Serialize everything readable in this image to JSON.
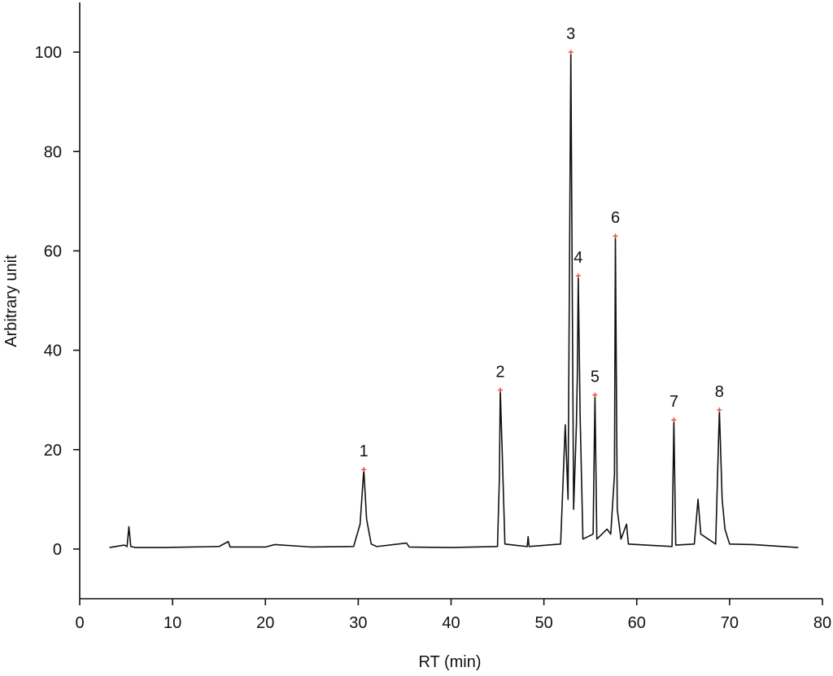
{
  "chart_data": {
    "type": "line",
    "x_label": "RT (min)",
    "y_label": "Arbitrary unit",
    "x": [
      3.2,
      4.8,
      5.1,
      5.3,
      5.5,
      6,
      9,
      12,
      15,
      16,
      16.2,
      20,
      21,
      25,
      29.5,
      30.2,
      30.6,
      30.9,
      31.1,
      31.4,
      32,
      35.2,
      35.5,
      40,
      45,
      45.2,
      45.3,
      45.5,
      45.8,
      48.2,
      48.3,
      48.4,
      51.8,
      52.3,
      52.6,
      52.9,
      53.2,
      53.5,
      53.6,
      53.7,
      53.9,
      54.2,
      55.3,
      55.5,
      55.7,
      56.8,
      57.2,
      57.6,
      57.7,
      57.9,
      58.3,
      58.9,
      59.1,
      61,
      63.8,
      64.0,
      64.2,
      66.2,
      66.6,
      66.9,
      68.5,
      68.9,
      69.2,
      69.5,
      70,
      72.5,
      77.4
    ],
    "values": [
      0.3,
      0.8,
      0.5,
      4.5,
      0.5,
      0.3,
      0.3,
      0.4,
      0.5,
      1.5,
      0.4,
      0.4,
      0.9,
      0.4,
      0.5,
      5,
      16,
      6,
      4,
      1,
      0.5,
      1.2,
      0.4,
      0.3,
      0.5,
      14,
      32,
      20,
      1,
      0.5,
      2.5,
      0.5,
      1,
      25,
      10,
      100,
      8,
      25,
      35,
      55,
      27,
      2,
      3,
      31,
      2,
      4,
      3,
      15,
      63,
      8,
      2,
      5,
      1,
      0.8,
      0.5,
      26,
      0.8,
      1,
      10,
      3,
      1,
      28,
      10,
      4,
      1,
      0.9,
      0.3
    ],
    "color": "#111111",
    "xlim": [
      0,
      80
    ],
    "xticks": [
      0,
      10,
      20,
      30,
      40,
      50,
      60,
      70,
      80
    ],
    "ylim": [
      -10,
      110
    ],
    "yticks": [
      0,
      20,
      40,
      60,
      80,
      100
    ],
    "marker_color": "#e8554a",
    "annotations": [
      {
        "text": "1",
        "x": 30.6,
        "y": 16
      },
      {
        "text": "2",
        "x": 45.3,
        "y": 32
      },
      {
        "text": "3",
        "x": 52.9,
        "y": 100
      },
      {
        "text": "4",
        "x": 53.7,
        "y": 55
      },
      {
        "text": "5",
        "x": 55.5,
        "y": 31
      },
      {
        "text": "6",
        "x": 57.7,
        "y": 63
      },
      {
        "text": "7",
        "x": 64.0,
        "y": 26
      },
      {
        "text": "8",
        "x": 68.9,
        "y": 28
      }
    ]
  }
}
